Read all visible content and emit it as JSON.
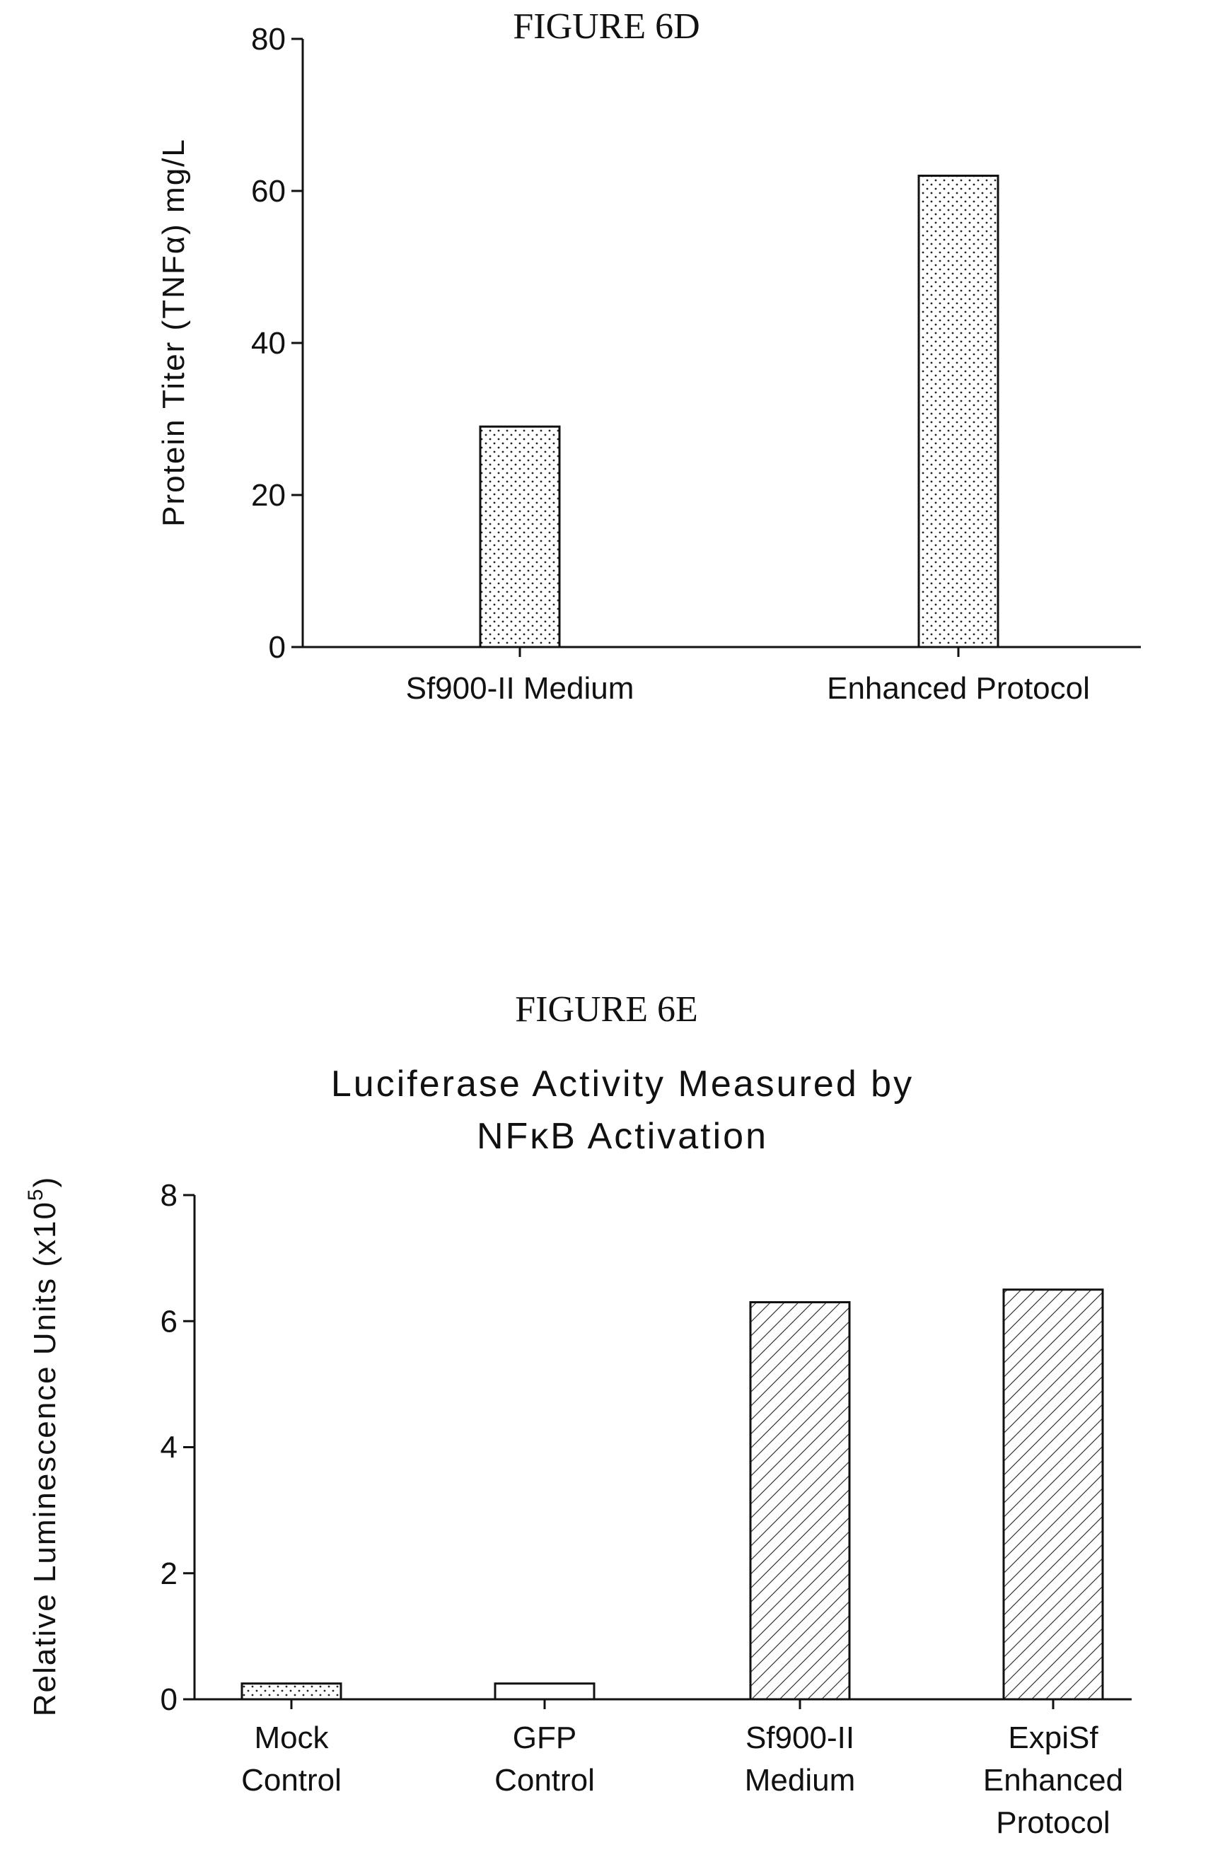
{
  "chart_data": [
    {
      "type": "bar",
      "figure_label": "FIGURE 6D",
      "title": "",
      "xlabel": "",
      "ylabel": "Protein Titer (TNFα) mg/L",
      "ylim": [
        0,
        80
      ],
      "yticks": [
        0,
        20,
        40,
        60,
        80
      ],
      "grid": false,
      "categories": [
        "Sf900-II Medium",
        "Enhanced Protocol"
      ],
      "values": [
        29,
        62
      ],
      "patterns": [
        "dots",
        "dots"
      ]
    },
    {
      "type": "bar",
      "figure_label": "FIGURE 6E",
      "title_lines": [
        "Luciferase Activity Measured by",
        "NFκB Activation"
      ],
      "xlabel": "",
      "ylabel": "Relative Luminescence Units (x10",
      "ylabel_sup": "5",
      "ylabel_end": ")",
      "ylim": [
        0,
        8
      ],
      "yticks": [
        0,
        2,
        4,
        6,
        8
      ],
      "grid": false,
      "categories": [
        [
          "Mock",
          "Control"
        ],
        [
          "GFP",
          "Control"
        ],
        [
          "Sf900-II",
          "Medium"
        ],
        [
          "ExpiSf",
          "Enhanced",
          "Protocol"
        ]
      ],
      "values": [
        0.25,
        0.25,
        6.3,
        6.5
      ],
      "patterns": [
        "dots",
        "none",
        "hatch",
        "hatch"
      ]
    }
  ]
}
